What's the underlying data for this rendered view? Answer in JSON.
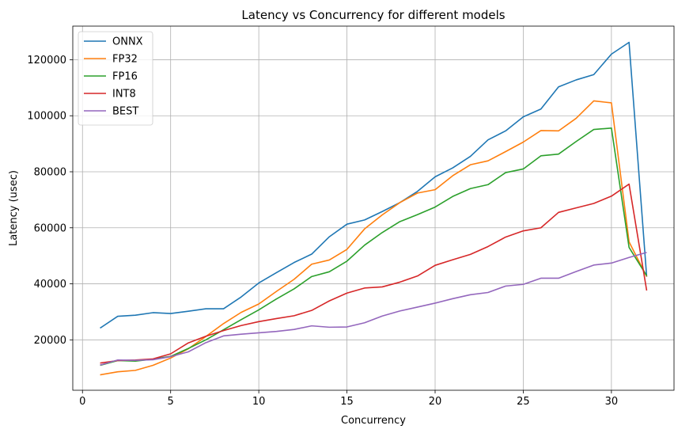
{
  "chart_data": {
    "type": "line",
    "title": "Latency vs Concurrency for different models",
    "xlabel": "Concurrency",
    "ylabel": "Latency (usec)",
    "xlim": [
      -0.55,
      33.55
    ],
    "ylim": [
      2000,
      132000
    ],
    "xticks": [
      0,
      5,
      10,
      15,
      20,
      25,
      30
    ],
    "yticks": [
      20000,
      40000,
      60000,
      80000,
      100000,
      120000
    ],
    "grid": true,
    "legend_position": "top-left",
    "x": [
      1,
      2,
      3,
      4,
      5,
      6,
      7,
      8,
      9,
      10,
      11,
      12,
      13,
      14,
      15,
      16,
      17,
      18,
      19,
      20,
      21,
      22,
      23,
      24,
      25,
      26,
      27,
      28,
      29,
      30,
      31,
      32
    ],
    "series": [
      {
        "name": "ONNX",
        "color": "#1f77b4",
        "values": [
          24200,
          28400,
          28800,
          29700,
          29400,
          30200,
          31100,
          31100,
          35300,
          40300,
          44000,
          47600,
          50600,
          56800,
          61300,
          62800,
          65800,
          69000,
          73000,
          78200,
          81400,
          85500,
          91400,
          94600,
          99600,
          102400,
          110300,
          112800,
          114700,
          122000,
          126200,
          42500
        ]
      },
      {
        "name": "FP32",
        "color": "#ff7f0e",
        "values": [
          7500,
          8600,
          9100,
          10900,
          13500,
          16800,
          21200,
          25800,
          29800,
          32800,
          37300,
          41600,
          47000,
          48500,
          52300,
          59600,
          64600,
          69000,
          72400,
          73600,
          78600,
          82500,
          83900,
          87200,
          90600,
          94700,
          94600,
          99100,
          105300,
          104600,
          55000,
          42600
        ]
      },
      {
        "name": "FP16",
        "color": "#2ca02c",
        "values": [
          10900,
          12600,
          12400,
          13100,
          14100,
          16900,
          20000,
          23600,
          27200,
          30700,
          34600,
          38200,
          42600,
          44300,
          48100,
          53800,
          58300,
          62200,
          64700,
          67400,
          71200,
          74000,
          75400,
          79700,
          81000,
          85700,
          86300,
          90800,
          95100,
          95600,
          53000,
          42900
        ]
      },
      {
        "name": "INT8",
        "color": "#d62728",
        "values": [
          11700,
          12600,
          12800,
          13200,
          15000,
          18900,
          21300,
          23300,
          25100,
          26500,
          27600,
          28600,
          30500,
          33900,
          36700,
          38500,
          38900,
          40600,
          42800,
          46600,
          48600,
          50500,
          53300,
          56700,
          58900,
          60000,
          65500,
          67100,
          68700,
          71300,
          75600,
          37600
        ]
      },
      {
        "name": "BEST",
        "color": "#9467bd",
        "values": [
          11000,
          12800,
          12700,
          12900,
          14000,
          15700,
          19000,
          21400,
          22000,
          22500,
          23000,
          23700,
          25000,
          24500,
          24600,
          26100,
          28500,
          30300,
          31700,
          33100,
          34700,
          36100,
          36900,
          39200,
          39800,
          42000,
          42000,
          44400,
          46700,
          47400,
          49400,
          51200
        ]
      }
    ]
  }
}
